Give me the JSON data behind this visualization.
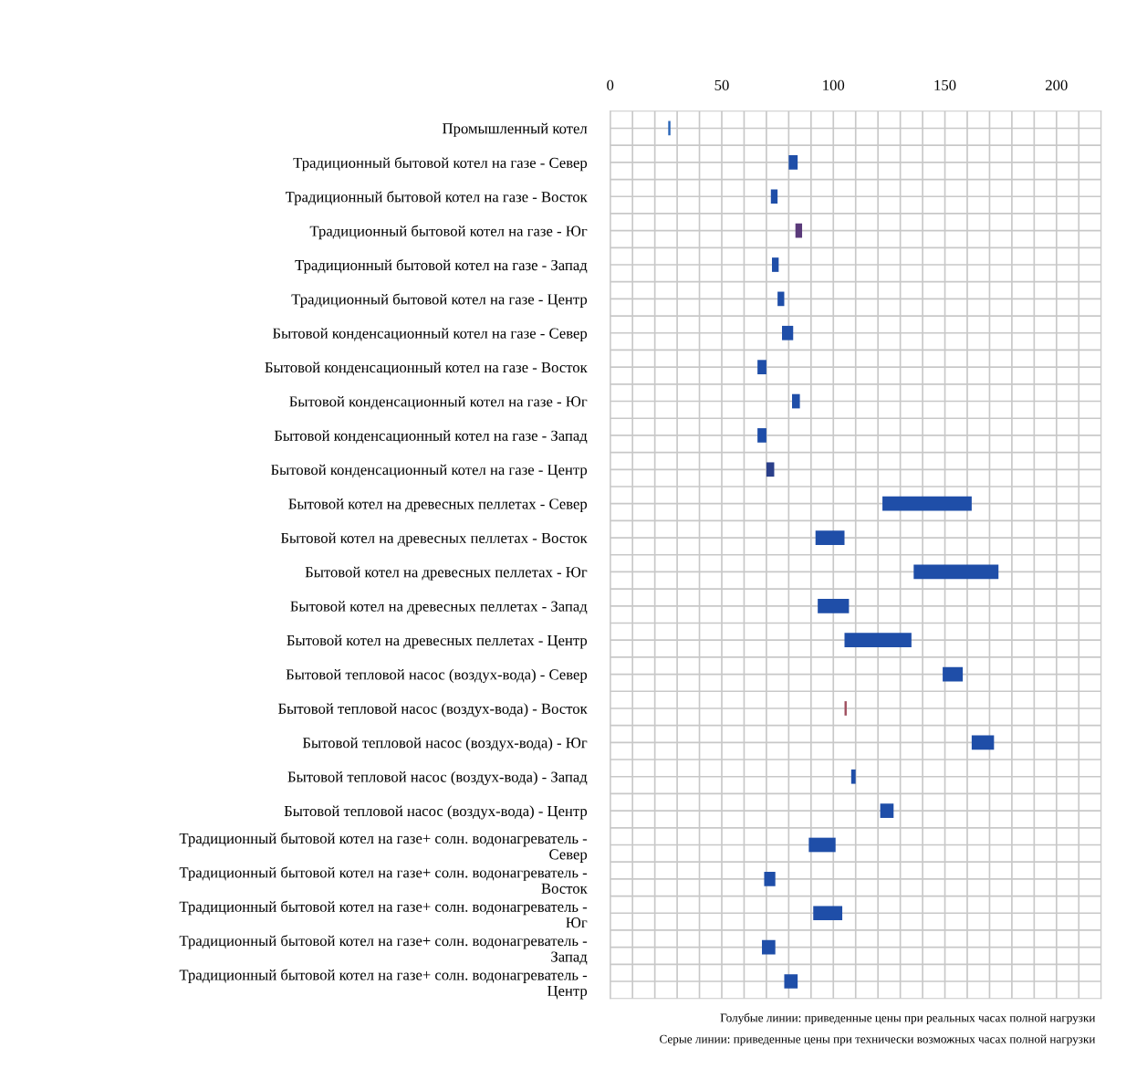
{
  "chart_data": {
    "type": "bar",
    "orientation": "horizontal",
    "categories": [
      "Промышленный котел",
      "Традиционный бытовой котел на газе - Север",
      "Традиционный бытовой котел на газе - Восток",
      "Традиционный бытовой котел на газе - Юг",
      "Традиционный бытовой котел на газе - Запад",
      "Традиционный бытовой котел на газе - Центр",
      "Бытовой конденсационный котел на газе - Север",
      "Бытовой конденсационный котел на газе - Восток",
      "Бытовой конденсационный котел на газе - Юг",
      "Бытовой конденсационный котел на газе - Запад",
      "Бытовой конденсационный котел на газе - Центр",
      "Бытовой котел на древесных пеллетах - Север",
      "Бытовой котел на древесных пеллетах - Восток",
      "Бытовой котел на древесных пеллетах - Юг",
      "Бытовой котел на древесных пеллетах - Запад",
      "Бытовой котел на древесных пеллетах - Центр",
      "Бытовой тепловой насос (воздух-вода) - Север",
      "Бытовой тепловой насос (воздух-вода) - Восток",
      "Бытовой тепловой насос (воздух-вода) - Юг",
      "Бытовой тепловой насос (воздух-вода) - Запад",
      "Бытовой тепловой насос (воздух-вода) - Центр",
      "Традиционный бытовой котел на газе+ солн. водонагреватель -\nСевер",
      "Традиционный бытовой котел на газе+ солн. водонагреватель -\nВосток",
      "Традиционный бытовой котел на газе+ солн. водонагреватель -\nЮг",
      "Традиционный бытовой котел на газе+ солн. водонагреватель -\nЗапад",
      "Традиционный бытовой котел на газе+ солн. водонагреватель -\nЦентр"
    ],
    "base": [
      26,
      80,
      72,
      83,
      72.5,
      75,
      77,
      66,
      81.5,
      66,
      70,
      122,
      92,
      136,
      93,
      105,
      149,
      105,
      162,
      108,
      121,
      89,
      69,
      91,
      68,
      78
    ],
    "values": [
      1,
      4,
      3,
      3,
      3,
      3,
      5,
      4,
      3.5,
      4,
      3.5,
      40,
      13,
      38,
      14,
      30,
      9,
      1,
      10,
      2,
      6,
      12,
      5,
      13,
      6,
      6
    ],
    "colors": [
      "#2a66b8",
      "#1f4ea8",
      "#1f4ea8",
      "#5a3a7a",
      "#1f4ea8",
      "#1f4ea8",
      "#1f4ea8",
      "#1f4ea8",
      "#1f4ea8",
      "#1f4ea8",
      "#2a3f8a",
      "#1f4ea8",
      "#1f4ea8",
      "#1f4ea8",
      "#1f4ea8",
      "#1f4ea8",
      "#1f4ea8",
      "#a05060",
      "#1f4ea8",
      "#1f4ea8",
      "#1f4ea8",
      "#1f4ea8",
      "#1f4ea8",
      "#1f4ea8",
      "#1f4ea8",
      "#1f4ea8"
    ],
    "xlim": [
      0,
      220
    ],
    "xticks": [
      0,
      {
        "value": 10,
        "label": null
      },
      {
        "value": 20,
        "label": null
      },
      {
        "value": 30,
        "label": null
      },
      {
        "value": 40,
        "label": null
      },
      50,
      {
        "value": 60,
        "label": null
      },
      {
        "value": 70,
        "label": null
      },
      {
        "value": 80,
        "label": null
      },
      {
        "value": 90,
        "label": null
      },
      100,
      {
        "value": 110,
        "label": null
      },
      {
        "value": 120,
        "label": null
      },
      {
        "value": 130,
        "label": null
      },
      {
        "value": 140,
        "label": null
      },
      150,
      {
        "value": 160,
        "label": null
      },
      {
        "value": 170,
        "label": null
      },
      {
        "value": 180,
        "label": null
      },
      {
        "value": 190,
        "label": null
      },
      200,
      {
        "value": 210,
        "label": null
      },
      {
        "value": 220,
        "label": null
      }
    ],
    "grid": true,
    "annotations": [
      "Голубые линии: приведенные цены при реальных часах полной нагрузки",
      "Серые линии: приведенные цены при технически возможных часах полной нагрузки"
    ]
  }
}
